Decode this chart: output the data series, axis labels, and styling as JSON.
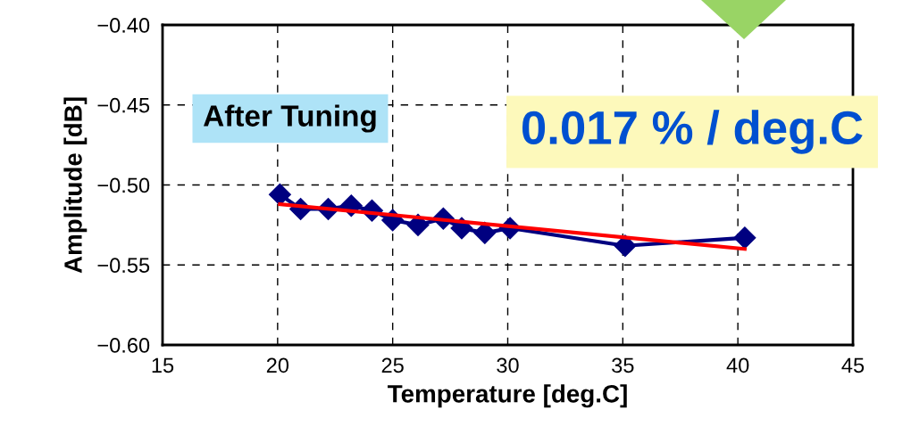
{
  "chart_data": {
    "type": "line",
    "xlabel": "Temperature [deg.C]",
    "ylabel": "Amplitude [dB]",
    "xlim": [
      15,
      45
    ],
    "xticks": [
      15,
      20,
      25,
      30,
      35,
      40,
      45
    ],
    "ylim": [
      -0.6,
      -0.4
    ],
    "yticks": [
      {
        "value": -0.6,
        "label": "−0.60"
      },
      {
        "value": -0.55,
        "label": "−0.55"
      },
      {
        "value": -0.5,
        "label": "−0.50"
      },
      {
        "value": -0.45,
        "label": "−0.45"
      },
      {
        "value": -0.4,
        "label": "−0.40"
      }
    ],
    "grid": true,
    "legend": false,
    "series": [
      {
        "color": "#000080",
        "marker": "diamond",
        "x": [
          20.1,
          21.0,
          22.2,
          23.2,
          24.1,
          25.0,
          26.1,
          27.2,
          28.0,
          29.0,
          30.1,
          35.1,
          40.3
        ],
        "values": [
          -0.506,
          -0.515,
          -0.515,
          -0.513,
          -0.516,
          -0.522,
          -0.525,
          -0.521,
          -0.527,
          -0.53,
          -0.527,
          -0.538,
          -0.533
        ]
      },
      {
        "color": "#ff0000",
        "marker": "none",
        "x": [
          20.1,
          40.3
        ],
        "values": [
          -0.512,
          -0.54
        ]
      }
    ],
    "annotations": [
      "After Tuning",
      "0.017 % / deg.C"
    ]
  }
}
